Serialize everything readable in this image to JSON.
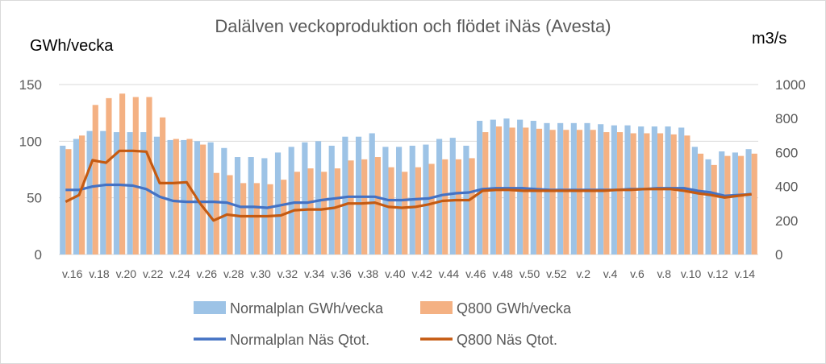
{
  "chart_data": {
    "type": "bar",
    "title": "Dalälven veckoproduktion och flödet iNäs (Avesta)",
    "ylabel_left": "GWh/vecka",
    "ylabel_right": "m3/s",
    "ylim_left": [
      0,
      150
    ],
    "ylim_right": [
      0,
      1000
    ],
    "yticks_left": [
      "0",
      "50",
      "100",
      "150"
    ],
    "yticks_right": [
      "0",
      "200",
      "400",
      "600",
      "800",
      "1000"
    ],
    "grid": true,
    "legend_position": "bottom",
    "x_tick_labels": [
      "v.16",
      "v.18",
      "v.20",
      "v.22",
      "v.24",
      "v.26",
      "v.28",
      "v.30",
      "v.32",
      "v.34",
      "v.36",
      "v.38",
      "v.40",
      "v.42",
      "v.44",
      "v.46",
      "v.48",
      "v.50",
      "v.52",
      "v.2",
      "v.4",
      "v.6",
      "v.8",
      "v.10",
      "v.12",
      "v.14"
    ],
    "categories": [
      "v.16",
      "v.17",
      "v.18",
      "v.19",
      "v.20",
      "v.21",
      "v.22",
      "v.23",
      "v.24",
      "v.25",
      "v.26",
      "v.27",
      "v.28",
      "v.29",
      "v.30",
      "v.31",
      "v.32",
      "v.33",
      "v.34",
      "v.35",
      "v.36",
      "v.37",
      "v.38",
      "v.39",
      "v.40",
      "v.41",
      "v.42",
      "v.43",
      "v.44",
      "v.45",
      "v.46",
      "v.47",
      "v.48",
      "v.49",
      "v.50",
      "v.51",
      "v.52",
      "v.1",
      "v.2",
      "v.3",
      "v.4",
      "v.5",
      "v.6",
      "v.7",
      "v.8",
      "v.9",
      "v.10",
      "v.11",
      "v.12",
      "v.13",
      "v.14",
      "v.15"
    ],
    "series": [
      {
        "name": "Normalplan GWh/vecka",
        "kind": "bar",
        "axis": "left",
        "color": "#9DC3E6",
        "values": [
          96,
          102,
          109,
          109,
          108,
          108,
          108,
          104,
          101,
          101,
          100,
          99,
          94,
          86,
          86,
          85,
          90,
          95,
          99,
          100,
          96,
          104,
          104,
          107,
          95,
          95,
          96,
          97,
          102,
          103,
          96,
          118,
          119,
          120,
          119,
          118,
          116,
          116,
          116,
          116,
          115,
          114,
          114,
          113,
          113,
          113,
          112,
          95,
          84,
          91,
          90,
          93
        ]
      },
      {
        "name": "Q800 GWh/vecka",
        "kind": "bar",
        "axis": "left",
        "color": "#F4B183",
        "values": [
          93,
          105,
          132,
          138,
          142,
          139,
          139,
          121,
          102,
          102,
          97,
          72,
          70,
          63,
          63,
          62,
          66,
          73,
          76,
          73,
          76,
          83,
          84,
          86,
          77,
          73,
          77,
          80,
          84,
          84,
          85,
          108,
          113,
          112,
          112,
          111,
          110,
          110,
          110,
          110,
          108,
          108,
          107,
          107,
          107,
          106,
          105,
          89,
          79,
          87,
          87,
          89
        ]
      },
      {
        "name": "Normalplan Näs Qtot.",
        "kind": "line",
        "axis": "right",
        "color": "#4472C4",
        "values": [
          380,
          380,
          400,
          410,
          410,
          405,
          385,
          340,
          315,
          310,
          310,
          310,
          305,
          280,
          280,
          275,
          290,
          305,
          305,
          320,
          330,
          340,
          340,
          340,
          320,
          320,
          325,
          330,
          350,
          360,
          365,
          385,
          390,
          390,
          390,
          385,
          380,
          380,
          380,
          380,
          380,
          380,
          385,
          385,
          390,
          390,
          390,
          375,
          365,
          345,
          350,
          355
        ]
      },
      {
        "name": "Q800 Näs Qtot.",
        "kind": "line",
        "axis": "right",
        "color": "#C55A11",
        "values": [
          310,
          350,
          555,
          540,
          610,
          610,
          605,
          420,
          420,
          425,
          300,
          200,
          235,
          225,
          225,
          225,
          230,
          260,
          265,
          265,
          275,
          300,
          300,
          305,
          280,
          275,
          280,
          295,
          315,
          320,
          320,
          375,
          380,
          380,
          375,
          375,
          375,
          375,
          375,
          375,
          375,
          380,
          380,
          385,
          385,
          385,
          375,
          360,
          350,
          335,
          345,
          355
        ]
      }
    ]
  }
}
